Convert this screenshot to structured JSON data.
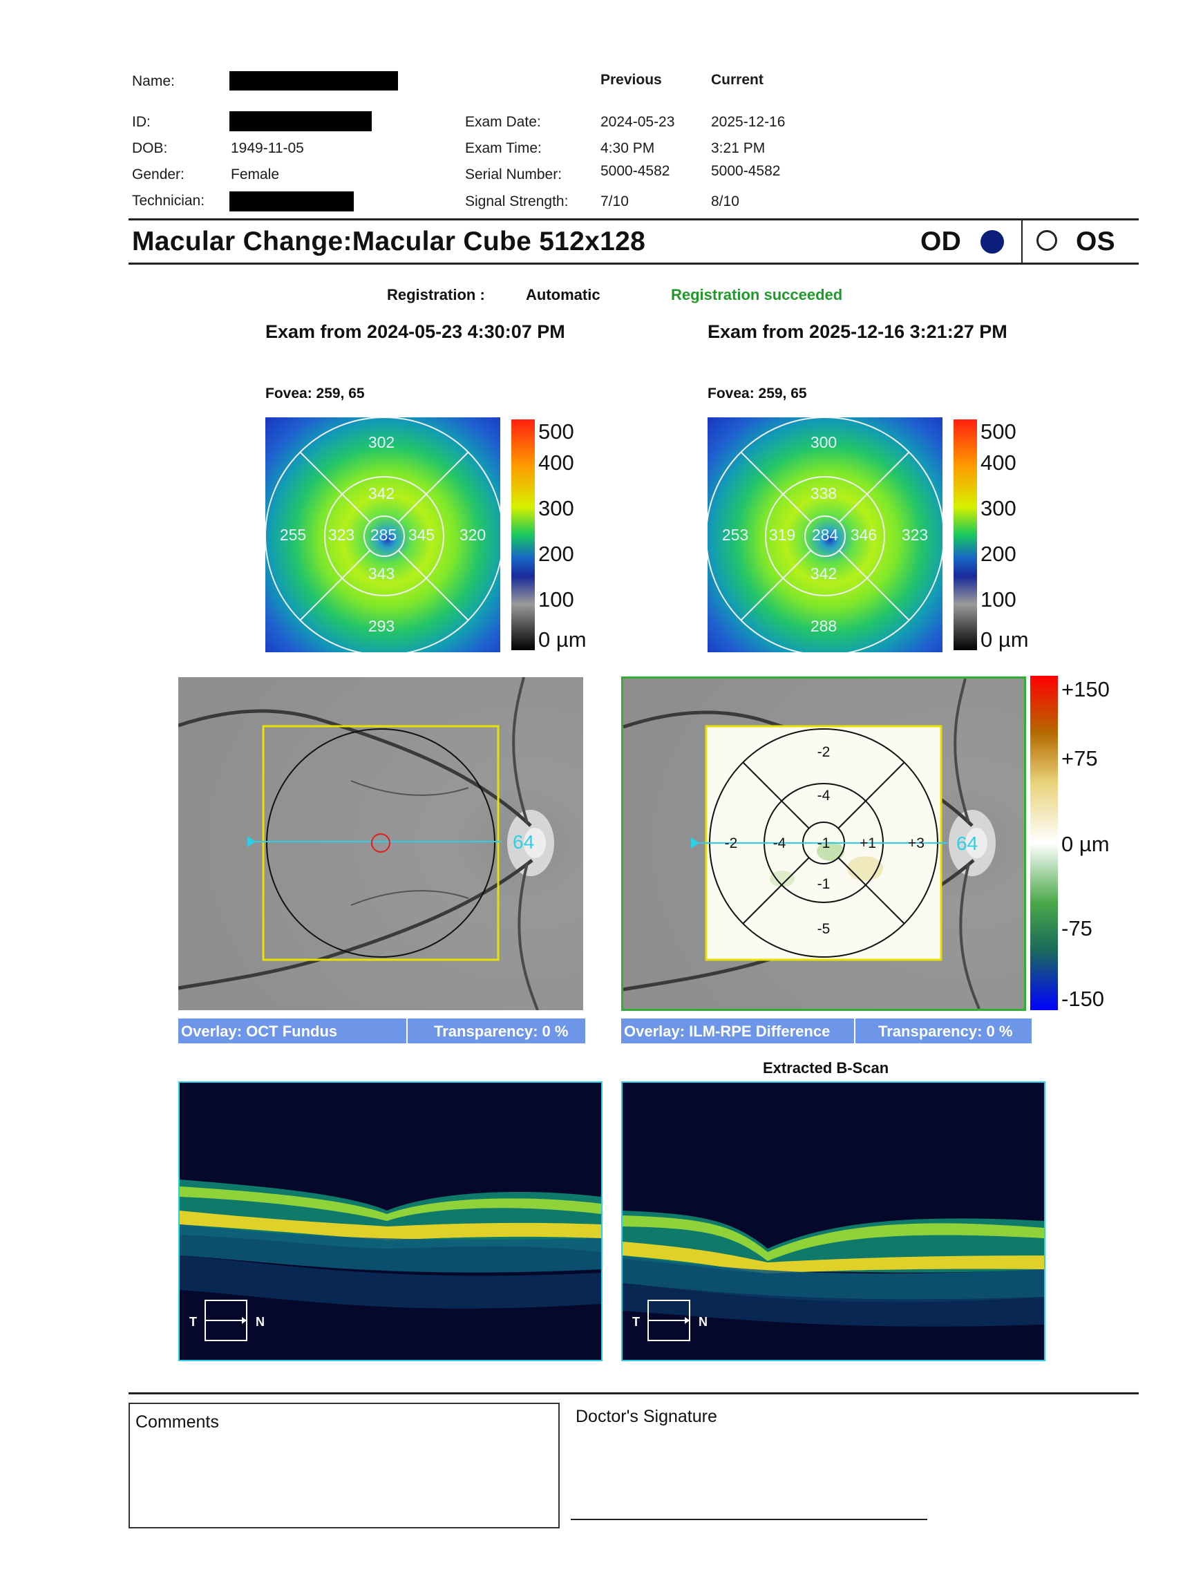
{
  "patient": {
    "name_label": "Name:",
    "id_label": "ID:",
    "dob_label": "DOB:",
    "dob": "1949-11-05",
    "gender_label": "Gender:",
    "gender": "Female",
    "technician_label": "Technician:"
  },
  "exam_table": {
    "col_previous": "Previous",
    "col_current": "Current",
    "rows": [
      {
        "label": "Exam Date:",
        "previous": "2024-05-23",
        "current": "2025-12-16"
      },
      {
        "label": "Exam Time:",
        "previous": "4:30 PM",
        "current": "3:21 PM"
      },
      {
        "label": "Serial Number:",
        "previous": "5000-4582",
        "current": "5000-4582"
      },
      {
        "label": "Signal Strength:",
        "previous": "7/10",
        "current": "8/10"
      }
    ]
  },
  "report": {
    "title": "Macular Change:Macular Cube 512x128",
    "od_label": "OD",
    "os_label": "OS",
    "selected_eye": "OD"
  },
  "registration": {
    "label": "Registration :",
    "mode": "Automatic",
    "status": "Registration succeeded",
    "status_color": "#1f9a2a"
  },
  "exams": {
    "previous": {
      "heading": "Exam from 2024-05-23 4:30:07 PM",
      "fovea": "Fovea: 259, 65",
      "sectors": {
        "outer_sup": "302",
        "outer_temp": "255",
        "outer_nas": "320",
        "outer_inf": "293",
        "inner_sup": "342",
        "inner_temp": "323",
        "inner_nas": "345",
        "inner_inf": "343",
        "center": "285"
      },
      "overlay": "Overlay: OCT Fundus",
      "transparency": "Transparency: 0 %"
    },
    "current": {
      "heading": "Exam from 2025-12-16 3:21:27 PM",
      "fovea": "Fovea: 259, 65",
      "sectors": {
        "outer_sup": "300",
        "outer_temp": "253",
        "outer_nas": "323",
        "outer_inf": "288",
        "inner_sup": "338",
        "inner_temp": "319",
        "inner_nas": "346",
        "inner_inf": "342",
        "center": "284"
      },
      "overlay": "Overlay: ILM-RPE Difference",
      "transparency": "Transparency: 0 %"
    }
  },
  "thickness_scale": {
    "labels": [
      "500",
      "400",
      "300",
      "200",
      "100",
      "0 µm"
    ]
  },
  "difference_scale": {
    "labels": [
      "+150",
      "+75",
      "0 µm",
      "-75",
      "-150"
    ]
  },
  "difference_sectors": {
    "outer_sup": "-2",
    "inner_sup": "-4",
    "outer_temp": "-2",
    "inner_temp": "-4",
    "center": "-1",
    "inner_nas": "+1",
    "outer_nas": "+3",
    "inner_inf": "-1",
    "outer_inf": "-5"
  },
  "scan_line_number": "64",
  "bscan": {
    "extracted_label": "Extracted B-Scan",
    "temporal": "T",
    "nasal": "N"
  },
  "footer": {
    "comments_label": "Comments",
    "signature_label": "Doctor's Signature"
  }
}
